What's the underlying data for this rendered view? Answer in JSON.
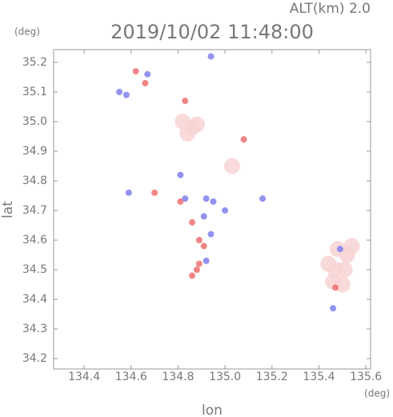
{
  "chart_data": {
    "type": "scatter",
    "title": "2019/10/02 11:48:00",
    "annotation": "ALT(km) 2.0",
    "x_label": "lon",
    "y_label": "lat",
    "x_unit": "(deg)",
    "y_unit": "(deg)",
    "xlim": [
      134.27,
      135.62
    ],
    "ylim": [
      34.165,
      35.243
    ],
    "xticks": [
      134.4,
      134.6,
      134.8,
      {
        "value": 135,
        "label": "135.0"
      },
      135.2,
      135.4,
      135.6
    ],
    "yticks": [
      34.2,
      34.3,
      34.4,
      34.5,
      34.6,
      34.7,
      34.8,
      34.9,
      {
        "value": 35,
        "label": "35.0"
      },
      35.1,
      35.2
    ],
    "grid": false,
    "series": [
      {
        "color": "#f8d4d4",
        "x": [
          134.82,
          134.86,
          134.84,
          134.88,
          135.48,
          135.52,
          135.47,
          135.51,
          135.46,
          135.5,
          135.44,
          135.54,
          135.03
        ],
        "y": [
          35.0,
          34.98,
          34.96,
          34.99,
          34.57,
          34.55,
          34.5,
          34.5,
          34.46,
          34.45,
          34.52,
          34.58,
          34.85
        ]
      },
      {
        "color": "#f07070",
        "x": [
          134.62,
          134.66,
          134.83,
          134.7,
          134.81,
          134.86,
          134.89,
          134.91,
          134.88,
          134.86,
          134.89,
          135.47,
          135.08
        ],
        "y": [
          35.17,
          35.13,
          35.07,
          34.76,
          34.73,
          34.66,
          34.6,
          34.58,
          34.5,
          34.48,
          34.52,
          34.44,
          34.94
        ]
      },
      {
        "color": "#8080f0",
        "x": [
          134.55,
          134.58,
          134.67,
          134.81,
          134.83,
          134.95,
          134.92,
          134.91,
          134.94,
          135.0,
          134.94,
          135.16,
          135.46,
          135.49,
          134.92,
          134.59
        ],
        "y": [
          35.1,
          35.09,
          35.16,
          34.82,
          34.74,
          34.73,
          34.74,
          34.68,
          34.62,
          34.7,
          35.22,
          34.74,
          34.37,
          34.57,
          34.53,
          34.76
        ]
      }
    ]
  }
}
